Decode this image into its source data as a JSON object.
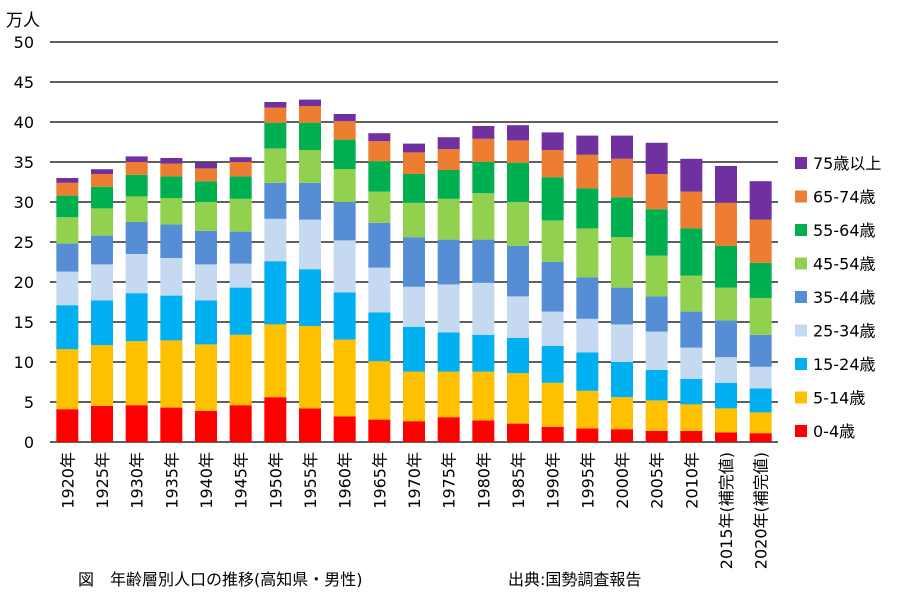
{
  "chart_data": {
    "type": "bar",
    "stacked": true,
    "ylabel": "万人",
    "ylim": [
      0,
      50
    ],
    "yticks": [
      0,
      5,
      10,
      15,
      20,
      25,
      30,
      35,
      40,
      45,
      50
    ],
    "grid": true,
    "legend_position": "right",
    "categories": [
      "1920年",
      "1925年",
      "1930年",
      "1935年",
      "1940年",
      "1945年",
      "1950年",
      "1955年",
      "1960年",
      "1965年",
      "1970年",
      "1975年",
      "1980年",
      "1985年",
      "1990年",
      "1995年",
      "2000年",
      "2005年",
      "2010年",
      "2015年(補完値)",
      "2020年(補完値)"
    ],
    "series": [
      {
        "name": "0-4歳",
        "color": "#ff0000",
        "values": [
          4.1,
          4.5,
          4.6,
          4.3,
          3.9,
          4.6,
          5.6,
          4.2,
          3.2,
          2.8,
          2.6,
          3.1,
          2.7,
          2.3,
          1.9,
          1.7,
          1.6,
          1.4,
          1.4,
          1.2,
          1.1
        ]
      },
      {
        "name": "5-14歳",
        "color": "#ffc000",
        "values": [
          7.5,
          7.6,
          8.0,
          8.4,
          8.3,
          8.8,
          9.1,
          10.3,
          9.6,
          7.3,
          6.2,
          5.7,
          6.1,
          6.3,
          5.5,
          4.7,
          4.0,
          3.8,
          3.3,
          3.0,
          2.6
        ]
      },
      {
        "name": "15-24歳",
        "color": "#00b0f0",
        "values": [
          5.5,
          5.6,
          6.0,
          5.6,
          5.5,
          5.9,
          7.9,
          7.1,
          5.9,
          6.1,
          5.6,
          4.9,
          4.6,
          4.4,
          4.6,
          4.8,
          4.4,
          3.8,
          3.2,
          3.2,
          3.0
        ]
      },
      {
        "name": "25-34歳",
        "color": "#c5d9f1",
        "values": [
          4.2,
          4.5,
          4.9,
          4.7,
          4.5,
          3.0,
          5.3,
          6.2,
          6.5,
          5.6,
          5.0,
          6.0,
          6.5,
          5.2,
          4.3,
          4.2,
          4.7,
          4.8,
          3.9,
          3.2,
          2.7
        ]
      },
      {
        "name": "35-44歳",
        "color": "#558ed5",
        "values": [
          3.5,
          3.6,
          4.0,
          4.2,
          4.2,
          4.0,
          4.5,
          4.6,
          4.8,
          5.6,
          6.2,
          5.6,
          5.4,
          6.3,
          6.2,
          5.2,
          4.6,
          4.4,
          4.5,
          4.6,
          4.0
        ]
      },
      {
        "name": "45-54歳",
        "color": "#92d050",
        "values": [
          3.3,
          3.4,
          3.2,
          3.3,
          3.6,
          4.1,
          4.3,
          4.1,
          4.1,
          3.9,
          4.3,
          5.1,
          5.8,
          5.5,
          5.2,
          6.1,
          6.3,
          5.1,
          4.5,
          4.1,
          4.6
        ]
      },
      {
        "name": "55-64歳",
        "color": "#00b050",
        "values": [
          2.7,
          2.7,
          2.7,
          2.7,
          2.6,
          2.8,
          3.2,
          3.4,
          3.7,
          3.8,
          3.6,
          3.6,
          3.9,
          4.9,
          5.4,
          5.0,
          5.0,
          5.8,
          5.9,
          5.2,
          4.4
        ]
      },
      {
        "name": "65-74歳",
        "color": "#ed7d31",
        "values": [
          1.6,
          1.6,
          1.6,
          1.6,
          1.6,
          1.8,
          1.9,
          2.1,
          2.3,
          2.5,
          2.7,
          2.6,
          2.9,
          2.8,
          3.4,
          4.2,
          4.8,
          4.4,
          4.6,
          5.4,
          5.4
        ]
      },
      {
        "name": "75歳以上",
        "color": "#7030a0",
        "values": [
          0.6,
          0.6,
          0.7,
          0.7,
          0.7,
          0.6,
          0.7,
          0.8,
          0.9,
          1.0,
          1.1,
          1.5,
          1.6,
          1.9,
          2.2,
          2.4,
          2.9,
          3.9,
          4.1,
          4.6,
          4.8
        ]
      }
    ]
  },
  "caption_left": "図　年齢層別人口の推移(高知県・男性)",
  "caption_right": "出典:国勢調査報告"
}
